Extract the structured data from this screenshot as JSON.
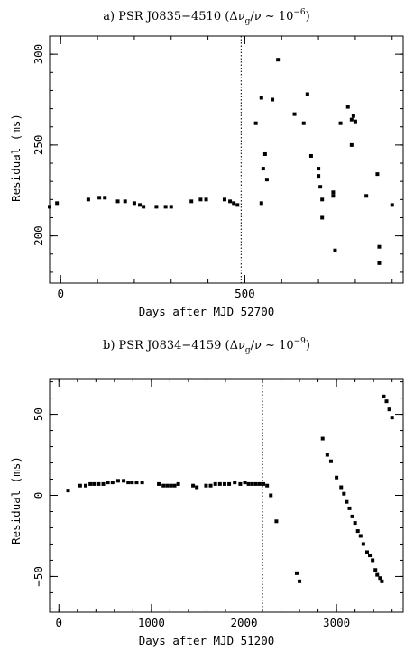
{
  "chart_data": [
    {
      "type": "scatter",
      "title_main": "a) PSR J0835−4510 (Δν",
      "title_sub": "g",
      "title_mid": "/ν ~ 10",
      "title_sup": "−6",
      "title_end": ")",
      "xlabel": "Days after MJD 52700",
      "ylabel": "Residual (ms)",
      "xlim": [
        -30,
        930
      ],
      "ylim": [
        174,
        310
      ],
      "xticks_major": [
        0,
        500
      ],
      "yticks_major": [
        200,
        250,
        300
      ],
      "glitch_x": 490,
      "x": [
        -30,
        -10,
        75,
        105,
        120,
        155,
        175,
        200,
        215,
        225,
        260,
        285,
        300,
        355,
        380,
        395,
        445,
        460,
        470,
        480,
        530,
        545,
        545,
        550,
        555,
        560,
        575,
        590,
        635,
        660,
        670,
        680,
        700,
        700,
        705,
        710,
        710,
        740,
        740,
        745,
        760,
        780,
        790,
        790,
        795,
        800,
        830,
        860,
        865,
        865,
        900
      ],
      "y": [
        216,
        218,
        220,
        221,
        221,
        219,
        219,
        218,
        217,
        216,
        216,
        216,
        216,
        219,
        220,
        220,
        220,
        219,
        218,
        217,
        262,
        276,
        218,
        237,
        245,
        231,
        275,
        297,
        267,
        262,
        278,
        244,
        237,
        233,
        227,
        220,
        210,
        224,
        222,
        192,
        262,
        271,
        264,
        250,
        266,
        263,
        222,
        234,
        194,
        185,
        217
      ]
    },
    {
      "type": "scatter",
      "title_main": "b) PSR J0834−4159 (Δν",
      "title_sub": "g",
      "title_mid": "/ν ~ 10",
      "title_sup": "−9",
      "title_end": ")",
      "xlabel": "Days after MJD 51200",
      "ylabel": "Residual (ms)",
      "xlim": [
        -100,
        3720
      ],
      "ylim": [
        -72,
        72
      ],
      "xticks_major": [
        0,
        1000,
        2000,
        3000
      ],
      "yticks_major": [
        -50,
        0,
        50
      ],
      "glitch_x": 2200,
      "x": [
        100,
        230,
        290,
        340,
        380,
        430,
        480,
        530,
        580,
        640,
        700,
        750,
        790,
        840,
        900,
        1080,
        1130,
        1170,
        1210,
        1250,
        1290,
        1450,
        1490,
        1590,
        1640,
        1690,
        1740,
        1790,
        1840,
        1900,
        1960,
        2010,
        2050,
        2090,
        2130,
        2170,
        2210,
        2250,
        2290,
        2350,
        2570,
        2600,
        2850,
        2900,
        2940,
        3000,
        3050,
        3080,
        3110,
        3140,
        3170,
        3200,
        3230,
        3260,
        3290,
        3330,
        3360,
        3390,
        3420,
        3440,
        3470,
        3490,
        3510,
        3540,
        3570,
        3600
      ],
      "y": [
        3,
        6,
        6,
        7,
        7,
        7,
        7,
        8,
        8,
        9,
        9,
        8,
        8,
        8,
        8,
        7,
        6,
        6,
        6,
        6,
        7,
        6,
        5,
        6,
        6,
        7,
        7,
        7,
        7,
        8,
        7,
        8,
        7,
        7,
        7,
        7,
        7,
        6,
        0,
        -16,
        -48,
        -53,
        35,
        25,
        21,
        11,
        5,
        1,
        -4,
        -8,
        -13,
        -17,
        -22,
        -25,
        -30,
        -35,
        -37,
        -40,
        -46,
        -49,
        -51,
        -53,
        61,
        58,
        53,
        48
      ]
    }
  ]
}
